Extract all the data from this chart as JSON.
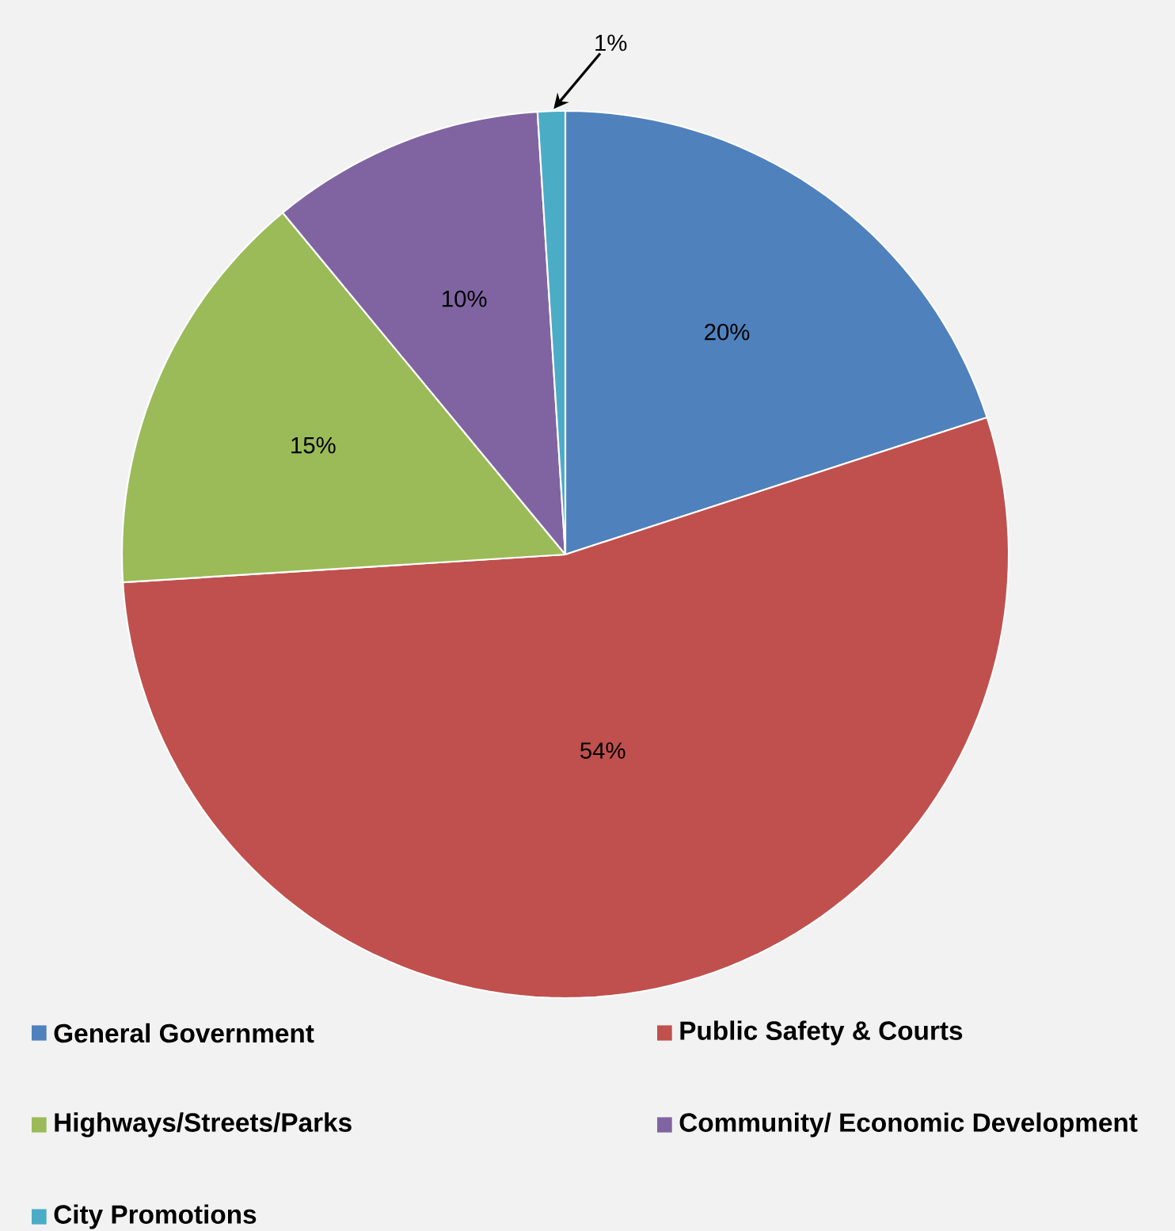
{
  "chart_data": {
    "type": "pie",
    "categories": [
      "General Government",
      "Public Safety & Courts",
      "Highways/Streets/Parks",
      "Community/ Economic Development",
      "City Promotions"
    ],
    "values": [
      20,
      54,
      15,
      10,
      1
    ],
    "colors": [
      "#4f81bd",
      "#c0504d",
      "#9bbb59",
      "#8064a2",
      "#4bacc6"
    ],
    "value_labels": [
      "20%",
      "54%",
      "15%",
      "10%",
      "1%"
    ],
    "legend": "bottom"
  }
}
